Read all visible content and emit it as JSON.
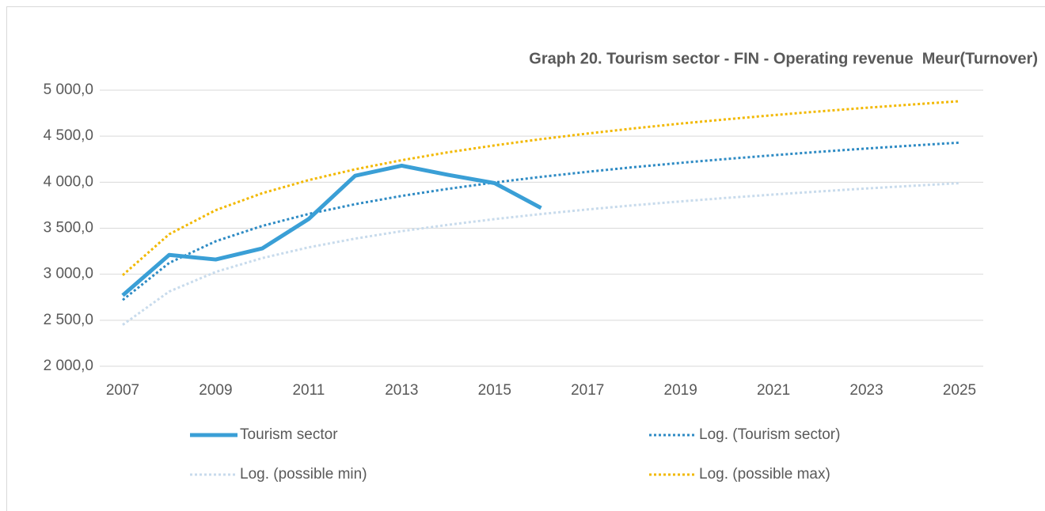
{
  "chart_data": {
    "type": "line",
    "title": "Graph 20. Tourism sector - FIN - Operating revenue  Meur(Turnover)",
    "x": [
      2007,
      2008,
      2009,
      2010,
      2011,
      2012,
      2013,
      2014,
      2015,
      2016,
      2017,
      2018,
      2019,
      2020,
      2021,
      2022,
      2023,
      2024,
      2025
    ],
    "xlim": [
      2007,
      2025
    ],
    "xticks": [
      2007,
      2009,
      2011,
      2013,
      2015,
      2017,
      2019,
      2021,
      2023,
      2025
    ],
    "ylim": [
      2000,
      5000
    ],
    "yticks": [
      {
        "value": 2000,
        "label": "2 000,0"
      },
      {
        "value": 2500,
        "label": "2 500,0"
      },
      {
        "value": 3000,
        "label": "3 000,0"
      },
      {
        "value": 3500,
        "label": "3 500,0"
      },
      {
        "value": 4000,
        "label": "4 000,0"
      },
      {
        "value": 4500,
        "label": "4 500,0"
      },
      {
        "value": 5000,
        "label": "5 000,0"
      }
    ],
    "grid": true,
    "legend": "bottom",
    "series": [
      {
        "name": "Tourism sector",
        "color": "#3a9fd6",
        "style": "solid",
        "values": [
          2770,
          3210,
          3160,
          3280,
          3600,
          4070,
          4180,
          4080,
          3990,
          3720,
          null,
          null,
          null,
          null,
          null,
          null,
          null,
          null,
          null
        ]
      },
      {
        "name": "Log. (Tourism sector)",
        "color": "#2e8bc4",
        "style": "dotted",
        "values": [
          2720,
          3123,
          3358,
          3525,
          3655,
          3761,
          3851,
          3928,
          3997,
          4058,
          4113,
          4164,
          4210,
          4253,
          4293,
          4331,
          4366,
          4399,
          4430
        ]
      },
      {
        "name": "Log. (possible min)",
        "color": "#c8dbec",
        "style": "dotted",
        "values": [
          2450,
          2812,
          3025,
          3175,
          3292,
          3387,
          3468,
          3537,
          3599,
          3654,
          3704,
          3750,
          3791,
          3830,
          3866,
          3900,
          3932,
          3961,
          3990
        ]
      },
      {
        "name": "Log. (possible max)",
        "color": "#f2b800",
        "style": "dotted",
        "values": [
          2990,
          3435,
          3696,
          3880,
          4023,
          4140,
          4239,
          4325,
          4400,
          4468,
          4529,
          4585,
          4637,
          4684,
          4729,
          4770,
          4809,
          4845,
          4880
        ]
      }
    ]
  }
}
